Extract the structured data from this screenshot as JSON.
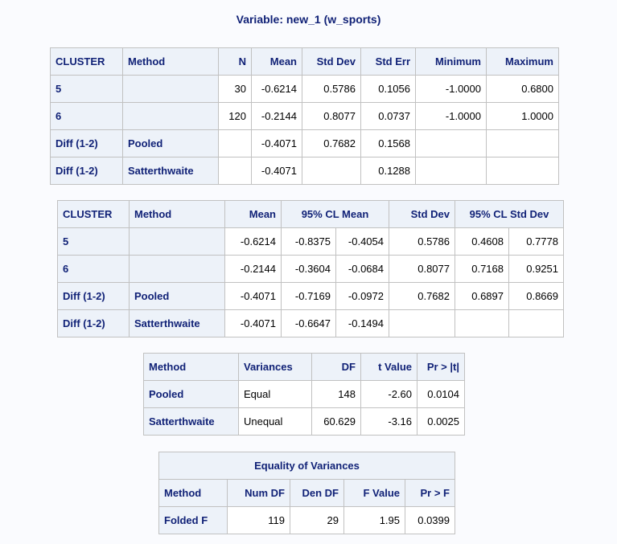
{
  "title": "Variable: new_1 (w_sports)",
  "table1": {
    "headers": [
      "CLUSTER",
      "Method",
      "N",
      "Mean",
      "Std Dev",
      "Std Err",
      "Minimum",
      "Maximum"
    ],
    "rows": [
      [
        "5",
        "",
        "30",
        "-0.6214",
        "0.5786",
        "0.1056",
        "-1.0000",
        "0.6800"
      ],
      [
        "6",
        "",
        "120",
        "-0.2144",
        "0.8077",
        "0.0737",
        "-1.0000",
        "1.0000"
      ],
      [
        "Diff (1-2)",
        "Pooled",
        "",
        "-0.4071",
        "0.7682",
        "0.1568",
        "",
        ""
      ],
      [
        "Diff (1-2)",
        "Satterthwaite",
        "",
        "-0.4071",
        "",
        "0.1288",
        "",
        ""
      ]
    ]
  },
  "table2": {
    "headers": [
      "CLUSTER",
      "Method",
      "Mean",
      "95% CL Mean",
      "Std Dev",
      "95% CL Std Dev"
    ],
    "rows": [
      [
        "5",
        "",
        "-0.6214",
        "-0.8375",
        "-0.4054",
        "0.5786",
        "0.4608",
        "0.7778"
      ],
      [
        "6",
        "",
        "-0.2144",
        "-0.3604",
        "-0.0684",
        "0.8077",
        "0.7168",
        "0.9251"
      ],
      [
        "Diff (1-2)",
        "Pooled",
        "-0.4071",
        "-0.7169",
        "-0.0972",
        "0.7682",
        "0.6897",
        "0.8669"
      ],
      [
        "Diff (1-2)",
        "Satterthwaite",
        "-0.4071",
        "-0.6647",
        "-0.1494",
        "",
        "",
        ""
      ]
    ]
  },
  "table3": {
    "headers": [
      "Method",
      "Variances",
      "DF",
      "t Value",
      "Pr > |t|"
    ],
    "rows": [
      [
        "Pooled",
        "Equal",
        "148",
        "-2.60",
        "0.0104"
      ],
      [
        "Satterthwaite",
        "Unequal",
        "60.629",
        "-3.16",
        "0.0025"
      ]
    ]
  },
  "table4": {
    "caption": "Equality of Variances",
    "headers": [
      "Method",
      "Num DF",
      "Den DF",
      "F Value",
      "Pr > F"
    ],
    "rows": [
      [
        "Folded F",
        "119",
        "29",
        "1.95",
        "0.0399"
      ]
    ]
  }
}
